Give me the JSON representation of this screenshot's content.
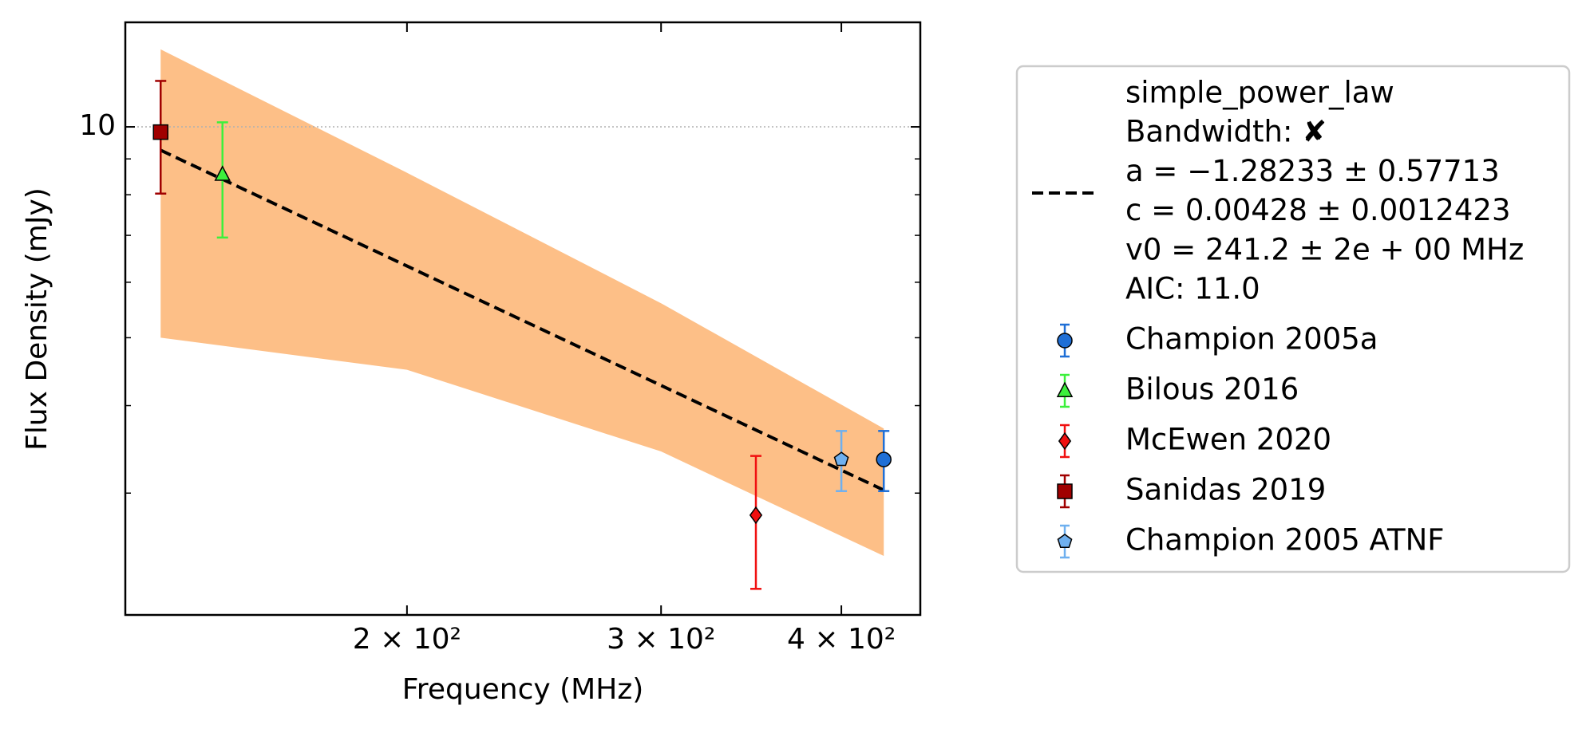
{
  "chart_data": {
    "type": "scatter",
    "x_label": "Frequency (MHz)",
    "y_label": "Flux Density (mJy)",
    "xscale": "log",
    "yscale": "log",
    "xlim": [
      127.6,
      453.7
    ],
    "ylim": [
      2.01,
      14.1
    ],
    "xticks": [
      {
        "value": 200,
        "label": "2 × 10²"
      },
      {
        "value": 300,
        "label": "3 × 10²"
      },
      {
        "value": 400,
        "label": "4 × 10²"
      }
    ],
    "yticks": [
      10
    ],
    "yminorticks": [
      3,
      4,
      5,
      6,
      7,
      8,
      9
    ],
    "grid": true,
    "band": {
      "color": "#fdbf87",
      "x": [
        135,
        200,
        300,
        428
      ],
      "upper": [
        12.9,
        8.6,
        5.6,
        3.71
      ],
      "lower": [
        5.0,
        4.5,
        3.44,
        2.44
      ]
    },
    "fit": {
      "color": "#000000",
      "label_lines": [
        "simple_power_law",
        "Bandwidth: ✘",
        "a = −1.28233 ± 0.57713",
        "c = 0.00428 ± 0.0012423",
        "v0 = 241.2 ± 2e + 00 MHz",
        "AIC: 11.0"
      ],
      "x": [
        135,
        428
      ],
      "values": [
        9.26,
        3.03
      ]
    },
    "series": [
      {
        "name": "Champion 2005a",
        "color": "#1f6fd6",
        "marker": "circle",
        "x": [
          428
        ],
        "values": [
          3.35
        ],
        "errors": [
          0.33
        ]
      },
      {
        "name": "Bilous 2016",
        "color": "#3cf03c",
        "marker": "triangle",
        "x": [
          149
        ],
        "values": [
          8.55
        ],
        "errors": [
          1.6
        ]
      },
      {
        "name": "McEwen 2020",
        "color": "#f01010",
        "marker": "diamond",
        "x": [
          349
        ],
        "values": [
          2.79
        ],
        "errors": [
          0.6
        ]
      },
      {
        "name": "Sanidas 2019",
        "color": "#a00000",
        "marker": "square",
        "x": [
          135
        ],
        "values": [
          9.83
        ],
        "errors": [
          1.8
        ]
      },
      {
        "name": "Champion 2005 ATNF",
        "color": "#6fb0ef",
        "marker": "pentagon",
        "x": [
          400
        ],
        "values": [
          3.35
        ],
        "errors": [
          0.33
        ]
      }
    ]
  }
}
